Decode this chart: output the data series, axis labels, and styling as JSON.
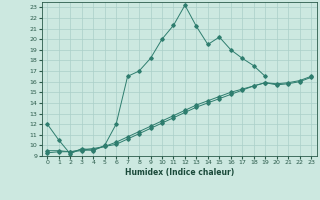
{
  "xlabel": "Humidex (Indice chaleur)",
  "bg_color": "#cce8e0",
  "grid_color": "#aacfc8",
  "line_color": "#2e7d6e",
  "xlim": [
    -0.5,
    23.5
  ],
  "ylim": [
    9,
    23.5
  ],
  "yticks": [
    9,
    10,
    11,
    12,
    13,
    14,
    15,
    16,
    17,
    18,
    19,
    20,
    21,
    22,
    23
  ],
  "xticks": [
    0,
    1,
    2,
    3,
    4,
    5,
    6,
    7,
    8,
    9,
    10,
    11,
    12,
    13,
    14,
    15,
    16,
    17,
    18,
    19,
    20,
    21,
    22,
    23
  ],
  "curve1_x": [
    0,
    1,
    2,
    3,
    4,
    5,
    6,
    7,
    8,
    9,
    10,
    11,
    12,
    13,
    14,
    15,
    16,
    17,
    18,
    19
  ],
  "curve1_y": [
    12,
    10.5,
    9.2,
    9.7,
    9.5,
    10.0,
    12.0,
    16.5,
    17.0,
    18.2,
    20.0,
    21.3,
    23.2,
    21.2,
    19.5,
    20.2,
    19.0,
    18.2,
    17.5,
    16.5
  ],
  "curve2_x": [
    0,
    1,
    2,
    3,
    4,
    5,
    6,
    7,
    8,
    9,
    10,
    11,
    12,
    13,
    14,
    15,
    16,
    17,
    18,
    19,
    20,
    21,
    22,
    23
  ],
  "curve2_y": [
    9.5,
    9.5,
    9.4,
    9.6,
    9.7,
    9.9,
    10.3,
    10.8,
    11.3,
    11.8,
    12.3,
    12.8,
    13.3,
    13.8,
    14.2,
    14.6,
    15.0,
    15.3,
    15.6,
    15.9,
    15.8,
    15.9,
    16.1,
    16.5
  ],
  "curve3_x": [
    0,
    1,
    2,
    3,
    4,
    5,
    6,
    7,
    8,
    9,
    10,
    11,
    12,
    13,
    14,
    15,
    16,
    17,
    18,
    19,
    20,
    21,
    22,
    23
  ],
  "curve3_y": [
    9.3,
    9.4,
    9.4,
    9.5,
    9.6,
    9.9,
    10.1,
    10.6,
    11.1,
    11.6,
    12.1,
    12.6,
    13.1,
    13.6,
    14.0,
    14.4,
    14.8,
    15.2,
    15.6,
    15.9,
    15.7,
    15.8,
    16.0,
    16.4
  ]
}
